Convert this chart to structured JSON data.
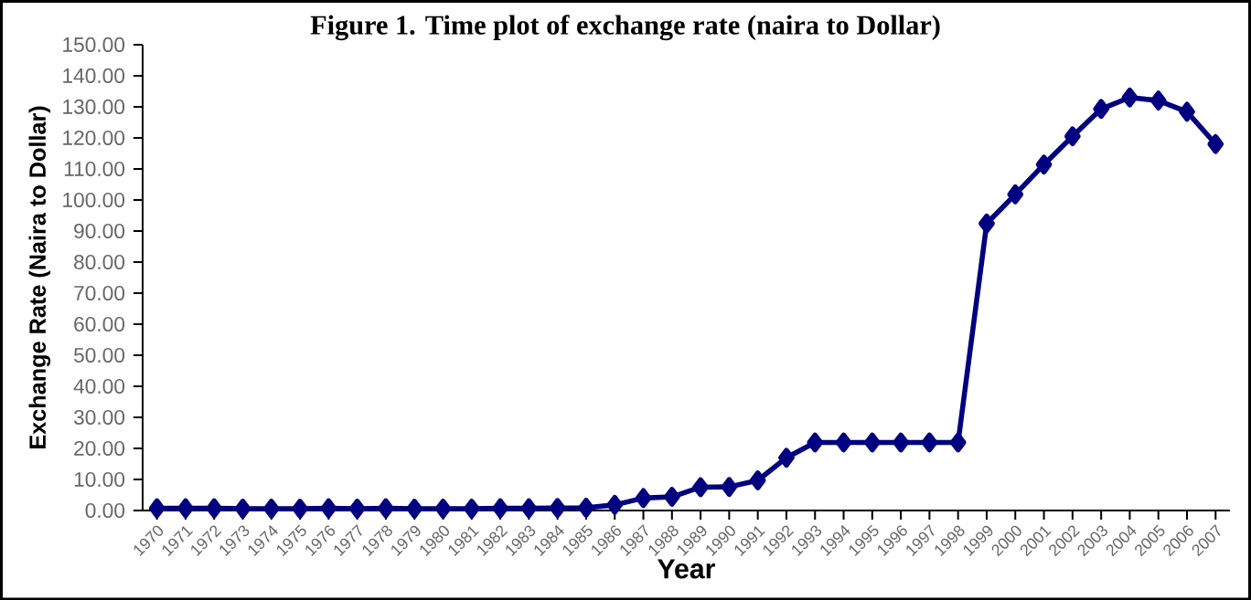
{
  "chart_data": {
    "type": "line",
    "title": "Figure 1. Time plot of exchange rate (naira to Dollar)",
    "xlabel": "Year",
    "ylabel": "Exchange Rate (Naira to Dollar)",
    "categories": [
      "1970",
      "1971",
      "1972",
      "1973",
      "1974",
      "1975",
      "1976",
      "1977",
      "1978",
      "1979",
      "1980",
      "1981",
      "1982",
      "1983",
      "1984",
      "1985",
      "1986",
      "1987",
      "1988",
      "1989",
      "1990",
      "1991",
      "1992",
      "1993",
      "1994",
      "1995",
      "1996",
      "1997",
      "1998",
      "1999",
      "2000",
      "2001",
      "2002",
      "2003",
      "2004",
      "2005",
      "2006",
      "2007"
    ],
    "series": [
      {
        "color": "#000080",
        "values": [
          0.7,
          0.7,
          0.7,
          0.6,
          0.6,
          0.6,
          0.7,
          0.6,
          0.7,
          0.6,
          0.6,
          0.6,
          0.7,
          0.7,
          0.8,
          0.9,
          1.8,
          4.0,
          4.4,
          7.5,
          7.6,
          9.7,
          17.0,
          21.9,
          21.9,
          21.9,
          21.9,
          21.9,
          21.9,
          92.4,
          101.8,
          111.4,
          120.5,
          129.3,
          133.0,
          132.0,
          128.4,
          118.0
        ]
      }
    ],
    "ylim": [
      0,
      150
    ],
    "yticks": [
      {
        "value": 0,
        "label": "0.00"
      },
      {
        "value": 10,
        "label": "10.00"
      },
      {
        "value": 20,
        "label": "20.00"
      },
      {
        "value": 30,
        "label": "30.00"
      },
      {
        "value": 40,
        "label": "40.00"
      },
      {
        "value": 50,
        "label": "50.00"
      },
      {
        "value": 60,
        "label": "60.00"
      },
      {
        "value": 70,
        "label": "70.00"
      },
      {
        "value": 80,
        "label": "80.00"
      },
      {
        "value": 90,
        "label": "90.00"
      },
      {
        "value": 100,
        "label": "100.00"
      },
      {
        "value": 110,
        "label": "110.00"
      },
      {
        "value": 120,
        "label": "120.00"
      },
      {
        "value": 130,
        "label": "130.00"
      },
      {
        "value": 140,
        "label": "140.00"
      },
      {
        "value": 150,
        "label": "150.00"
      }
    ],
    "marker": "diamond",
    "line_style": "solid",
    "grid": false
  }
}
